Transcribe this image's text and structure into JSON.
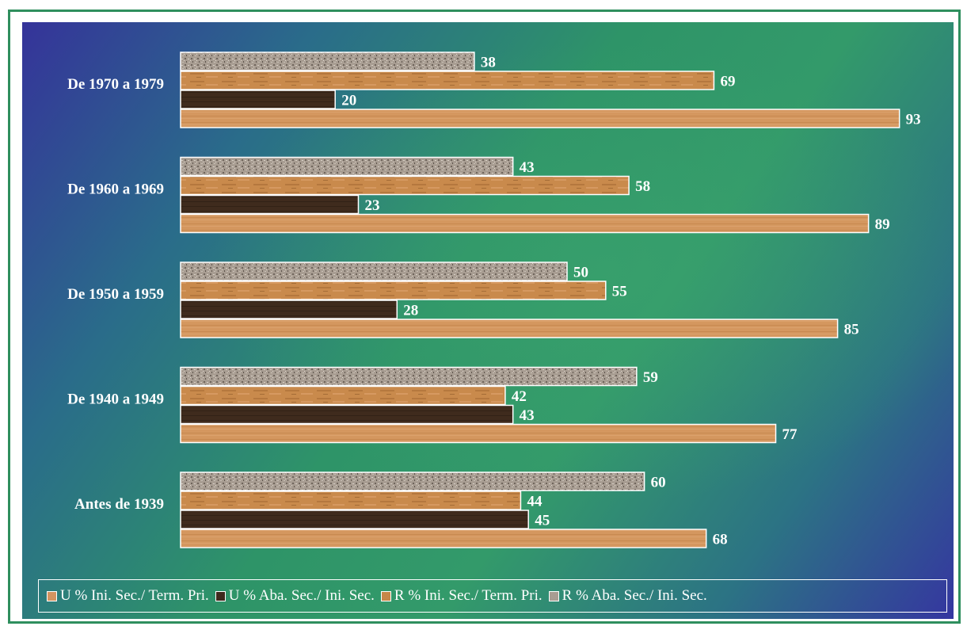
{
  "chart_data": {
    "type": "bar",
    "orientation": "horizontal",
    "categories": [
      "De 1970 a 1979",
      "De 1960 a 1969",
      "De 1950 a 1959",
      "De 1940 a 1949",
      "Antes de 1939"
    ],
    "series": [
      {
        "name": "R % Aba. Sec./ Ini. Sec.",
        "values": [
          38,
          43,
          50,
          59,
          60
        ],
        "color": "#b2a79c"
      },
      {
        "name": "R % Ini. Sec./ Term. Pri.",
        "values": [
          69,
          58,
          55,
          42,
          44
        ],
        "color": "#c78748"
      },
      {
        "name": "U % Aba. Sec./ Ini. Sec.",
        "values": [
          20,
          23,
          28,
          43,
          45
        ],
        "color": "#3e2a1c"
      },
      {
        "name": "U % Ini. Sec./ Term. Pri.",
        "values": [
          93,
          89,
          85,
          77,
          68
        ],
        "color": "#d49460"
      }
    ],
    "legend_order": [
      "U % Ini. Sec./ Term. Pri.",
      "U % Aba. Sec./ Ini. Sec.",
      "R % Ini. Sec./ Term. Pri.",
      "R % Aba. Sec./ Ini. Sec."
    ],
    "xlim": [
      0,
      100
    ],
    "grid": false,
    "legend_position": "bottom",
    "data_labels": true
  },
  "colors": {
    "frame": "#2f8f5e",
    "bar_border": "#ffffff",
    "text": "#ffffff"
  }
}
